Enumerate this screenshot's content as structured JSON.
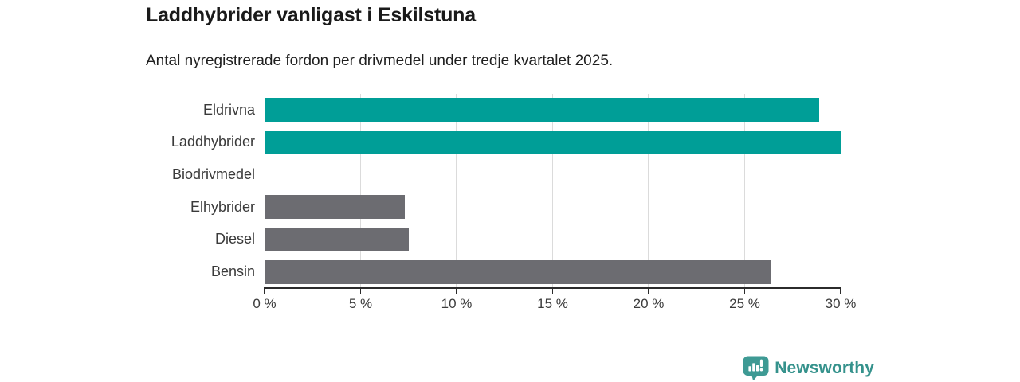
{
  "header": {
    "title": "Laddhybrider vanligast i Eskilstuna",
    "subtitle": "Antal nyregistrerade fordon per drivmedel under tredje kvartalet 2025."
  },
  "chart_data": {
    "type": "bar",
    "orientation": "horizontal",
    "title": "Laddhybrider vanligast i Eskilstuna",
    "subtitle": "Antal nyregistrerade fordon per drivmedel under tredje kvartalet 2025.",
    "categories": [
      "Eldrivna",
      "Laddhybrider",
      "Biodrivmedel",
      "Elhybrider",
      "Diesel",
      "Bensin"
    ],
    "values": [
      28.9,
      30.0,
      0,
      7.3,
      7.5,
      26.4
    ],
    "unit": "%",
    "xlabel": "",
    "ylabel": "",
    "xlim": [
      0,
      30
    ],
    "x_ticks": [
      0,
      5,
      10,
      15,
      20,
      25,
      30
    ],
    "x_tick_labels": [
      "0 %",
      "5 %",
      "10 %",
      "15 %",
      "20 %",
      "25 %",
      "30 %"
    ],
    "grid": true,
    "legend": false,
    "bar_colors": [
      "#009e97",
      "#009e97",
      "#6c6c71",
      "#6c6c71",
      "#6c6c71",
      "#6c6c71"
    ],
    "highlight_color": "#009e97",
    "default_color": "#6c6c71",
    "gridline_color": "#dbdbdb",
    "axis_color": "#2b2b2b"
  },
  "footer": {
    "brand": "Newsworthy",
    "logo_icon": "bar-chart-pin-icon",
    "brand_color": "#35928c",
    "icon_color": "#3e9a94"
  }
}
